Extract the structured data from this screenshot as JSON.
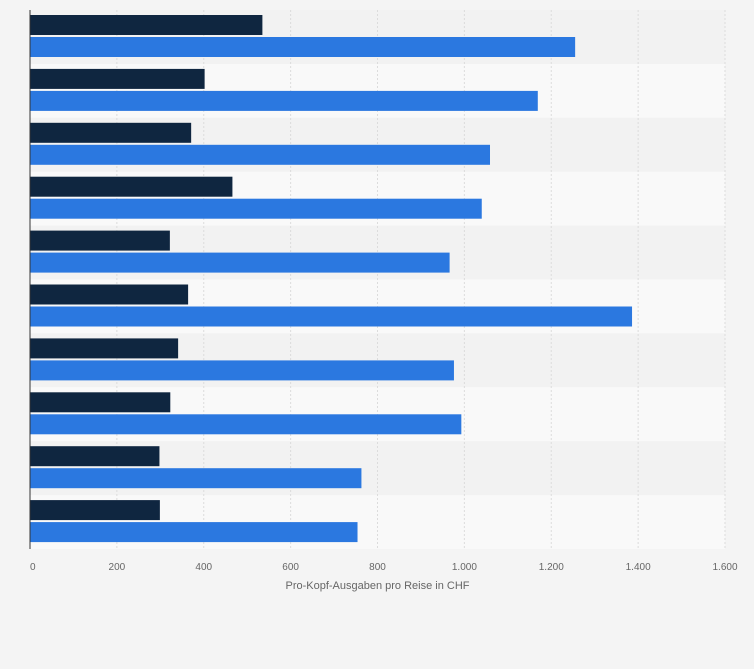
{
  "chart_data": {
    "type": "bar",
    "orientation": "horizontal",
    "title": "",
    "xlabel": "Pro-Kopf-Ausgaben pro Reise in CHF",
    "ylabel": "",
    "xlim": [
      0,
      1600
    ],
    "xticks": [
      0,
      200,
      400,
      600,
      800,
      1000,
      1200,
      1400,
      1600
    ],
    "xtick_labels": [
      "0",
      "200",
      "400",
      "600",
      "800",
      "1.000",
      "1.200",
      "1.400",
      "1.600"
    ],
    "grid": true,
    "legend": "none",
    "categories": [
      "",
      "",
      "",
      "",
      "",
      "",
      "",
      "",
      "",
      ""
    ],
    "series": [
      {
        "color": "#0f2640",
        "values": [
          535,
          402,
          371,
          466,
          322,
          364,
          341,
          323,
          298,
          299
        ]
      },
      {
        "color": "#2b78e0",
        "values": [
          1255,
          1169,
          1059,
          1040,
          966,
          1386,
          976,
          993,
          763,
          754
        ]
      }
    ]
  }
}
